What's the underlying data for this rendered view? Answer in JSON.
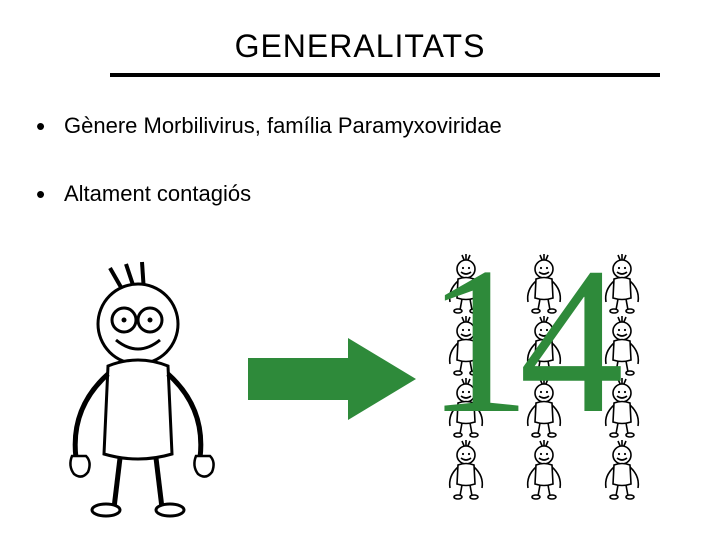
{
  "title": "GENERALITATS",
  "bullets": [
    "Gènere Morbilivirus, família Paramyxoviridae",
    "Altament contagiós"
  ],
  "number": "14",
  "colors": {
    "arrow": "#2e8a3a",
    "number": "#2e8a3a",
    "stroke": "#000000",
    "background": "#ffffff"
  },
  "infographic": {
    "type": "infographic",
    "big_figure_count": 1,
    "small_figure_grid": {
      "rows": 4,
      "cols": 3,
      "count": 12
    },
    "overlay_number": "14",
    "overlay_color": "#2e8a3a",
    "arrow_color": "#2e8a3a"
  }
}
